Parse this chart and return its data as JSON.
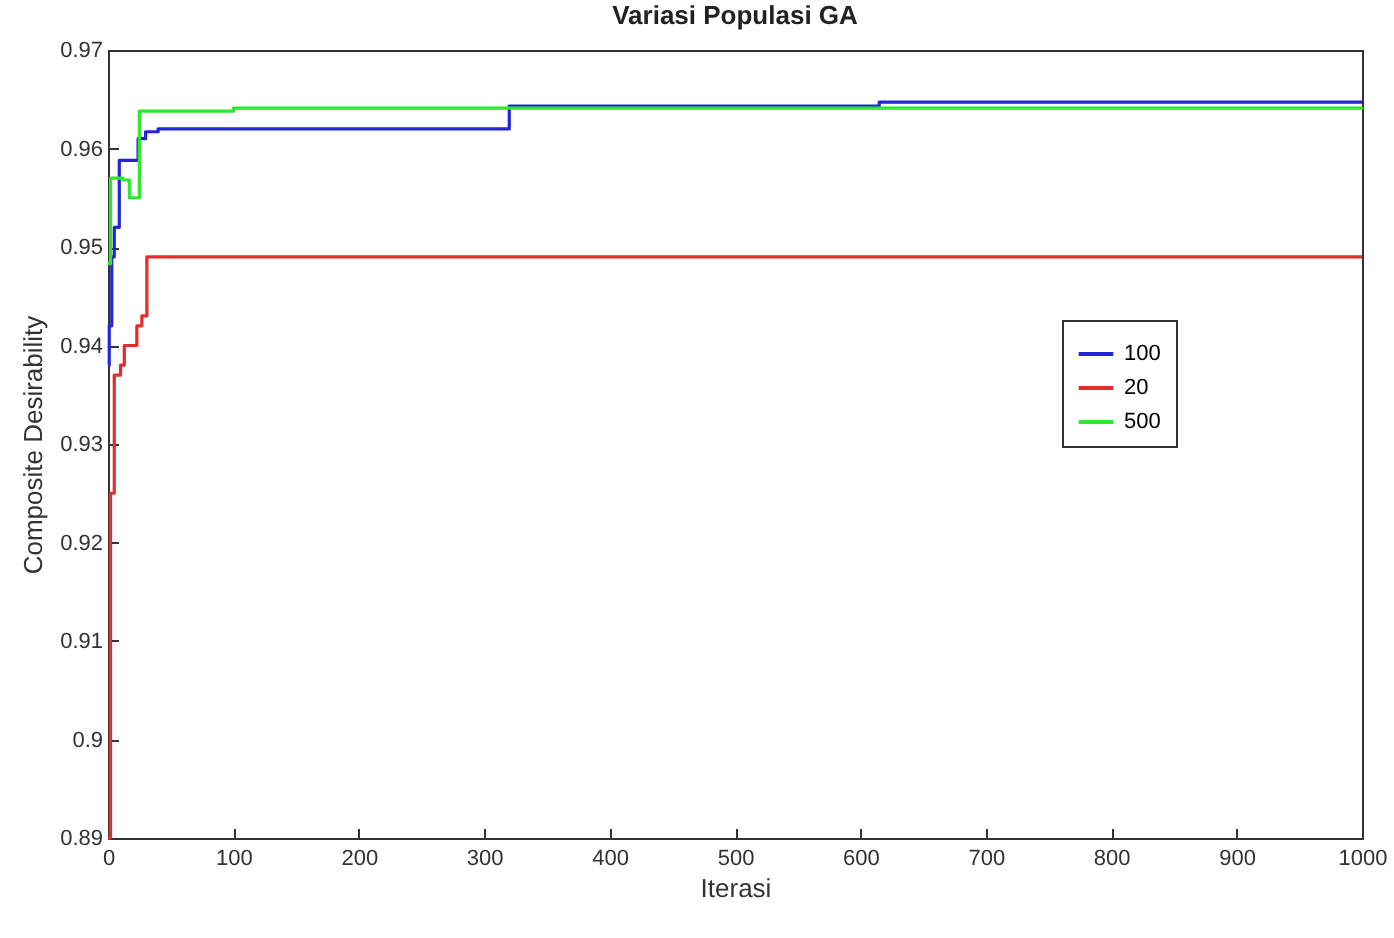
{
  "chart_data": {
    "type": "step",
    "title": "Variasi Populasi GA",
    "xlabel": "Iterasi",
    "ylabel": "Composite Desirability",
    "xlim": [
      0,
      1000
    ],
    "xticks": [
      0,
      100,
      200,
      300,
      400,
      500,
      600,
      700,
      800,
      900,
      1000
    ],
    "ylim": [
      0.89,
      0.97
    ],
    "yticks": [
      0.89,
      0.9,
      0.91,
      0.92,
      0.93,
      0.94,
      0.95,
      0.96,
      0.97
    ],
    "grid": false,
    "legend": "right",
    "line_style": "solid",
    "marker": "none",
    "series": [
      {
        "name": "100",
        "color": "#2424d8",
        "x": [
          0,
          1,
          3,
          5,
          9,
          24,
          30,
          40,
          313,
          320,
          612,
          615,
          1000
        ],
        "values": [
          0.938,
          0.942,
          0.949,
          0.952,
          0.9588,
          0.961,
          0.9617,
          0.962,
          0.962,
          0.9643,
          0.9643,
          0.9647,
          0.9647
        ]
      },
      {
        "name": "20",
        "color": "#e52c2c",
        "x": [
          0,
          2,
          5,
          10,
          13,
          23,
          27,
          31,
          1000
        ],
        "values": [
          0.89,
          0.925,
          0.937,
          0.938,
          0.94,
          0.942,
          0.943,
          0.949,
          0.949
        ]
      },
      {
        "name": "500",
        "color": "#2ee62e",
        "x": [
          0,
          2,
          12,
          17,
          25,
          100,
          1000
        ],
        "values": [
          0.9483,
          0.957,
          0.9568,
          0.955,
          0.9638,
          0.9641,
          0.9642
        ]
      }
    ]
  }
}
